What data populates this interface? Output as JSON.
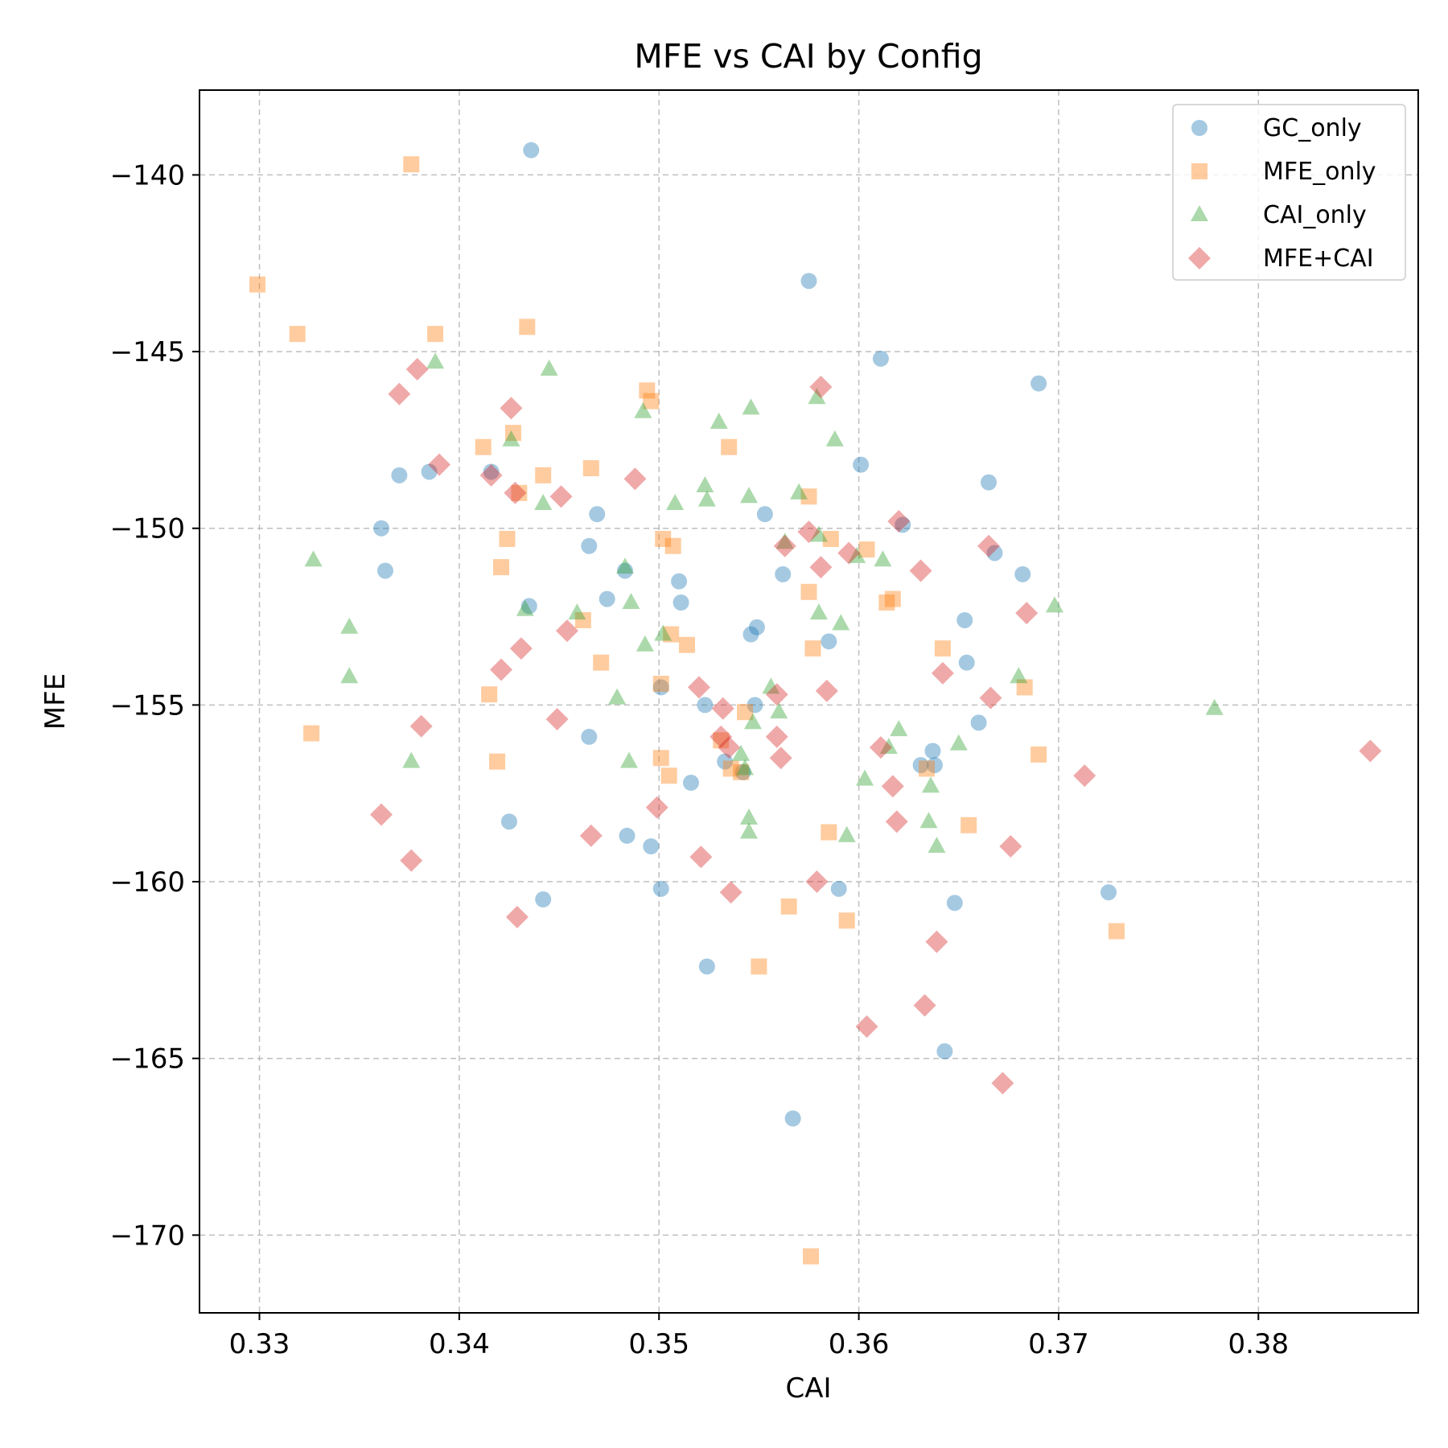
{
  "chart_data": {
    "type": "scatter",
    "title": "MFE vs CAI by Config",
    "xlabel": "CAI",
    "ylabel": "MFE",
    "xlim": [
      0.327,
      0.388
    ],
    "ylim": [
      -172.2,
      -137.6
    ],
    "xticks": [
      0.33,
      0.34,
      0.35,
      0.36,
      0.37,
      0.38
    ],
    "xtick_labels": [
      "0.33",
      "0.34",
      "0.35",
      "0.36",
      "0.37",
      "0.38"
    ],
    "yticks": [
      -140,
      -145,
      -150,
      -155,
      -160,
      -165,
      -170
    ],
    "ytick_labels": [
      "−140",
      "−145",
      "−150",
      "−155",
      "−160",
      "−165",
      "−170"
    ],
    "grid": true,
    "legend_position": "top-right",
    "series": [
      {
        "name": "GC_only",
        "marker": "circle",
        "color": "#1f77b4",
        "points": [
          [
            0.3436,
            -139.3
          ],
          [
            0.3575,
            -143.0
          ],
          [
            0.3611,
            -145.2
          ],
          [
            0.369,
            -145.9
          ],
          [
            0.337,
            -148.5
          ],
          [
            0.3385,
            -148.4
          ],
          [
            0.3416,
            -148.4
          ],
          [
            0.3601,
            -148.2
          ],
          [
            0.3665,
            -148.7
          ],
          [
            0.3361,
            -150.0
          ],
          [
            0.3363,
            -151.2
          ],
          [
            0.3469,
            -149.6
          ],
          [
            0.3465,
            -150.5
          ],
          [
            0.3553,
            -149.6
          ],
          [
            0.3622,
            -149.9
          ],
          [
            0.3483,
            -151.2
          ],
          [
            0.351,
            -151.5
          ],
          [
            0.3562,
            -151.3
          ],
          [
            0.3668,
            -150.7
          ],
          [
            0.3682,
            -151.3
          ],
          [
            0.3435,
            -152.2
          ],
          [
            0.3474,
            -152.0
          ],
          [
            0.3511,
            -152.1
          ],
          [
            0.3546,
            -153.0
          ],
          [
            0.3549,
            -152.8
          ],
          [
            0.3585,
            -153.2
          ],
          [
            0.3653,
            -152.6
          ],
          [
            0.3654,
            -153.8
          ],
          [
            0.3501,
            -154.5
          ],
          [
            0.3523,
            -155.0
          ],
          [
            0.3548,
            -155.0
          ],
          [
            0.366,
            -155.5
          ],
          [
            0.3465,
            -155.9
          ],
          [
            0.3533,
            -156.6
          ],
          [
            0.3542,
            -156.9
          ],
          [
            0.3631,
            -156.7
          ],
          [
            0.3637,
            -156.3
          ],
          [
            0.3638,
            -156.7
          ],
          [
            0.3516,
            -157.2
          ],
          [
            0.3425,
            -158.3
          ],
          [
            0.3484,
            -158.7
          ],
          [
            0.3496,
            -159.0
          ],
          [
            0.3501,
            -160.2
          ],
          [
            0.359,
            -160.2
          ],
          [
            0.3442,
            -160.5
          ],
          [
            0.3648,
            -160.6
          ],
          [
            0.3725,
            -160.3
          ],
          [
            0.3524,
            -162.4
          ],
          [
            0.3643,
            -164.8
          ],
          [
            0.3567,
            -166.7
          ]
        ]
      },
      {
        "name": "MFE_only",
        "marker": "square",
        "color": "#ff7f0e",
        "points": [
          [
            0.3376,
            -139.7
          ],
          [
            0.3299,
            -143.1
          ],
          [
            0.3319,
            -144.5
          ],
          [
            0.3388,
            -144.5
          ],
          [
            0.3434,
            -144.3
          ],
          [
            0.3494,
            -146.1
          ],
          [
            0.3496,
            -146.4
          ],
          [
            0.3412,
            -147.7
          ],
          [
            0.3427,
            -147.3
          ],
          [
            0.3442,
            -148.5
          ],
          [
            0.3466,
            -148.3
          ],
          [
            0.3535,
            -147.7
          ],
          [
            0.343,
            -149.0
          ],
          [
            0.3575,
            -149.1
          ],
          [
            0.3424,
            -150.3
          ],
          [
            0.3502,
            -150.3
          ],
          [
            0.3507,
            -150.5
          ],
          [
            0.3586,
            -150.3
          ],
          [
            0.3604,
            -150.6
          ],
          [
            0.3421,
            -151.1
          ],
          [
            0.3575,
            -151.8
          ],
          [
            0.3614,
            -152.1
          ],
          [
            0.3617,
            -152.0
          ],
          [
            0.3462,
            -152.6
          ],
          [
            0.3506,
            -153.0
          ],
          [
            0.3514,
            -153.3
          ],
          [
            0.3577,
            -153.4
          ],
          [
            0.3642,
            -153.4
          ],
          [
            0.3471,
            -153.8
          ],
          [
            0.3415,
            -154.7
          ],
          [
            0.3501,
            -154.4
          ],
          [
            0.3543,
            -155.2
          ],
          [
            0.3683,
            -154.5
          ],
          [
            0.3326,
            -155.8
          ],
          [
            0.3419,
            -156.6
          ],
          [
            0.3501,
            -156.5
          ],
          [
            0.3505,
            -157.0
          ],
          [
            0.3531,
            -156.0
          ],
          [
            0.3536,
            -156.8
          ],
          [
            0.3541,
            -156.9
          ],
          [
            0.3634,
            -156.8
          ],
          [
            0.369,
            -156.4
          ],
          [
            0.3585,
            -158.6
          ],
          [
            0.3655,
            -158.4
          ],
          [
            0.3565,
            -160.7
          ],
          [
            0.3594,
            -161.1
          ],
          [
            0.3729,
            -161.4
          ],
          [
            0.355,
            -162.4
          ],
          [
            0.3576,
            -170.6
          ]
        ]
      },
      {
        "name": "CAI_only",
        "marker": "triangle",
        "color": "#2ca02c",
        "points": [
          [
            0.3388,
            -145.3
          ],
          [
            0.3445,
            -145.5
          ],
          [
            0.3492,
            -146.7
          ],
          [
            0.3546,
            -146.6
          ],
          [
            0.3579,
            -146.3
          ],
          [
            0.353,
            -147.0
          ],
          [
            0.3426,
            -147.5
          ],
          [
            0.3588,
            -147.5
          ],
          [
            0.3442,
            -149.3
          ],
          [
            0.3508,
            -149.3
          ],
          [
            0.3523,
            -148.8
          ],
          [
            0.3524,
            -149.2
          ],
          [
            0.3545,
            -149.1
          ],
          [
            0.357,
            -149.0
          ],
          [
            0.3327,
            -150.9
          ],
          [
            0.3483,
            -151.1
          ],
          [
            0.3563,
            -150.4
          ],
          [
            0.358,
            -150.2
          ],
          [
            0.3599,
            -150.8
          ],
          [
            0.3612,
            -150.9
          ],
          [
            0.3345,
            -152.8
          ],
          [
            0.3433,
            -152.3
          ],
          [
            0.3459,
            -152.4
          ],
          [
            0.3486,
            -152.1
          ],
          [
            0.358,
            -152.4
          ],
          [
            0.3591,
            -152.7
          ],
          [
            0.3698,
            -152.2
          ],
          [
            0.3345,
            -154.2
          ],
          [
            0.3493,
            -153.3
          ],
          [
            0.3502,
            -153.0
          ],
          [
            0.3479,
            -154.8
          ],
          [
            0.3556,
            -154.5
          ],
          [
            0.356,
            -155.2
          ],
          [
            0.3547,
            -155.5
          ],
          [
            0.368,
            -154.2
          ],
          [
            0.3778,
            -155.1
          ],
          [
            0.3376,
            -156.6
          ],
          [
            0.3485,
            -156.6
          ],
          [
            0.3541,
            -156.4
          ],
          [
            0.3543,
            -156.8
          ],
          [
            0.3615,
            -156.2
          ],
          [
            0.362,
            -155.7
          ],
          [
            0.365,
            -156.1
          ],
          [
            0.3603,
            -157.1
          ],
          [
            0.3636,
            -157.3
          ],
          [
            0.3545,
            -158.2
          ],
          [
            0.3545,
            -158.6
          ],
          [
            0.3594,
            -158.7
          ],
          [
            0.3635,
            -158.3
          ],
          [
            0.3639,
            -159.0
          ]
        ]
      },
      {
        "name": "MFE+CAI",
        "marker": "diamond",
        "color": "#d62728",
        "points": [
          [
            0.337,
            -146.2
          ],
          [
            0.3379,
            -145.5
          ],
          [
            0.3426,
            -146.6
          ],
          [
            0.3581,
            -146.0
          ],
          [
            0.339,
            -148.2
          ],
          [
            0.3416,
            -148.5
          ],
          [
            0.3428,
            -149.0
          ],
          [
            0.3451,
            -149.1
          ],
          [
            0.3488,
            -148.6
          ],
          [
            0.3563,
            -150.5
          ],
          [
            0.3575,
            -150.1
          ],
          [
            0.3581,
            -151.1
          ],
          [
            0.3595,
            -150.7
          ],
          [
            0.362,
            -149.8
          ],
          [
            0.3631,
            -151.2
          ],
          [
            0.3665,
            -150.5
          ],
          [
            0.3684,
            -152.4
          ],
          [
            0.3421,
            -154.0
          ],
          [
            0.3431,
            -153.4
          ],
          [
            0.3454,
            -152.9
          ],
          [
            0.352,
            -154.5
          ],
          [
            0.3532,
            -155.1
          ],
          [
            0.3559,
            -154.7
          ],
          [
            0.3584,
            -154.6
          ],
          [
            0.3642,
            -154.1
          ],
          [
            0.3666,
            -154.8
          ],
          [
            0.3381,
            -155.6
          ],
          [
            0.3449,
            -155.4
          ],
          [
            0.3531,
            -155.9
          ],
          [
            0.3535,
            -156.2
          ],
          [
            0.3559,
            -155.9
          ],
          [
            0.3561,
            -156.5
          ],
          [
            0.3611,
            -156.2
          ],
          [
            0.3617,
            -157.3
          ],
          [
            0.3713,
            -157.0
          ],
          [
            0.3361,
            -158.1
          ],
          [
            0.3376,
            -159.4
          ],
          [
            0.3466,
            -158.7
          ],
          [
            0.3499,
            -157.9
          ],
          [
            0.3619,
            -158.3
          ],
          [
            0.3676,
            -159.0
          ],
          [
            0.3429,
            -161.0
          ],
          [
            0.3521,
            -159.3
          ],
          [
            0.3536,
            -160.3
          ],
          [
            0.3579,
            -160.0
          ],
          [
            0.3639,
            -161.7
          ],
          [
            0.3633,
            -163.5
          ],
          [
            0.3604,
            -164.1
          ],
          [
            0.3672,
            -165.7
          ],
          [
            0.3856,
            -156.3
          ]
        ]
      }
    ]
  }
}
